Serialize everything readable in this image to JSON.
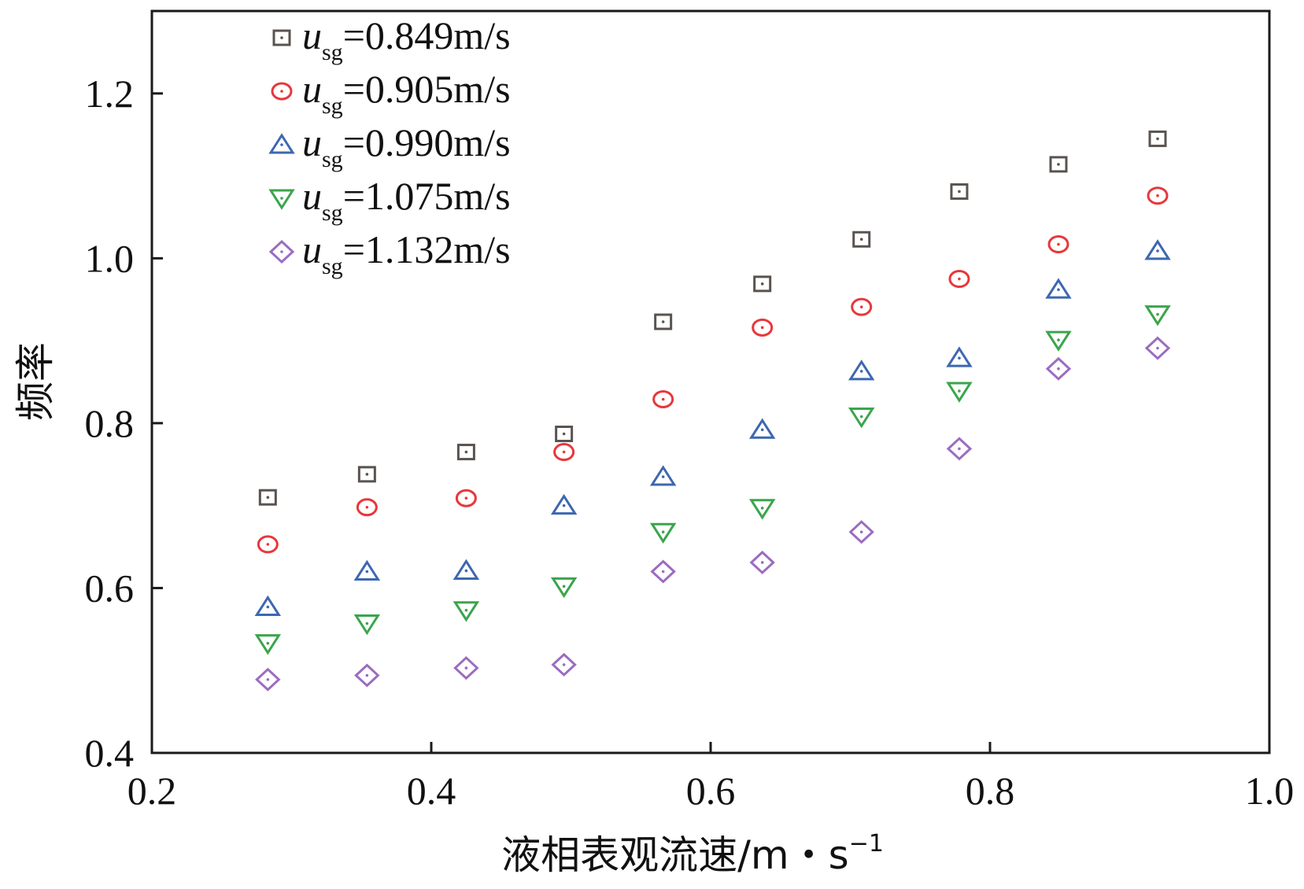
{
  "chart_data": {
    "type": "scatter",
    "title": "",
    "xlabel": "液相表观流速/m・s",
    "xlabel_sup": "−1",
    "ylabel": "频率",
    "xlim": [
      0.2,
      1.0
    ],
    "ylim": [
      0.4,
      1.3
    ],
    "xticks": [
      0.2,
      0.4,
      0.6,
      0.8,
      1.0
    ],
    "xtick_labels": [
      "0.2",
      "0.4",
      "0.6",
      "0.8",
      "1.0"
    ],
    "yticks": [
      0.4,
      0.6,
      0.8,
      1.0,
      1.2
    ],
    "ytick_labels": [
      "0.4",
      "0.6",
      "0.8",
      "1.0",
      "1.2"
    ],
    "grid": false,
    "legend_position": "top-left",
    "x": [
      0.283,
      0.354,
      0.425,
      0.495,
      0.566,
      0.637,
      0.708,
      0.778,
      0.849,
      0.92
    ],
    "series": [
      {
        "name": "usg=0.849m/s",
        "label_var": "u",
        "label_sub": "sg",
        "label_value": "=0.849m/s",
        "marker": "square",
        "color": "#5a5350",
        "values": [
          0.71,
          0.738,
          0.765,
          0.787,
          0.923,
          0.969,
          1.023,
          1.081,
          1.114,
          1.145
        ]
      },
      {
        "name": "usg=0.905m/s",
        "label_var": "u",
        "label_sub": "sg",
        "label_value": "=0.905m/s",
        "marker": "circle",
        "color": "#e8373a",
        "values": [
          0.653,
          0.698,
          0.709,
          0.765,
          0.829,
          0.916,
          0.941,
          0.975,
          1.017,
          1.076
        ]
      },
      {
        "name": "usg=0.990m/s",
        "label_var": "u",
        "label_sub": "sg",
        "label_value": "=0.990m/s",
        "marker": "triangle-up",
        "color": "#3d67b1",
        "values": [
          0.577,
          0.62,
          0.621,
          0.7,
          0.735,
          0.792,
          0.863,
          0.879,
          0.962,
          1.009
        ]
      },
      {
        "name": "usg=1.075m/s",
        "label_var": "u",
        "label_sub": "sg",
        "label_value": "=1.075m/s",
        "marker": "triangle-down",
        "color": "#3aa54b",
        "values": [
          0.533,
          0.557,
          0.573,
          0.602,
          0.668,
          0.697,
          0.808,
          0.839,
          0.901,
          0.932
        ]
      },
      {
        "name": "usg=1.132m/s",
        "label_var": "u",
        "label_sub": "sg",
        "label_value": "=1.132m/s",
        "marker": "diamond",
        "color": "#9b6cc0",
        "values": [
          0.489,
          0.494,
          0.503,
          0.507,
          0.62,
          0.631,
          0.668,
          0.769,
          0.866,
          0.891
        ]
      }
    ]
  }
}
